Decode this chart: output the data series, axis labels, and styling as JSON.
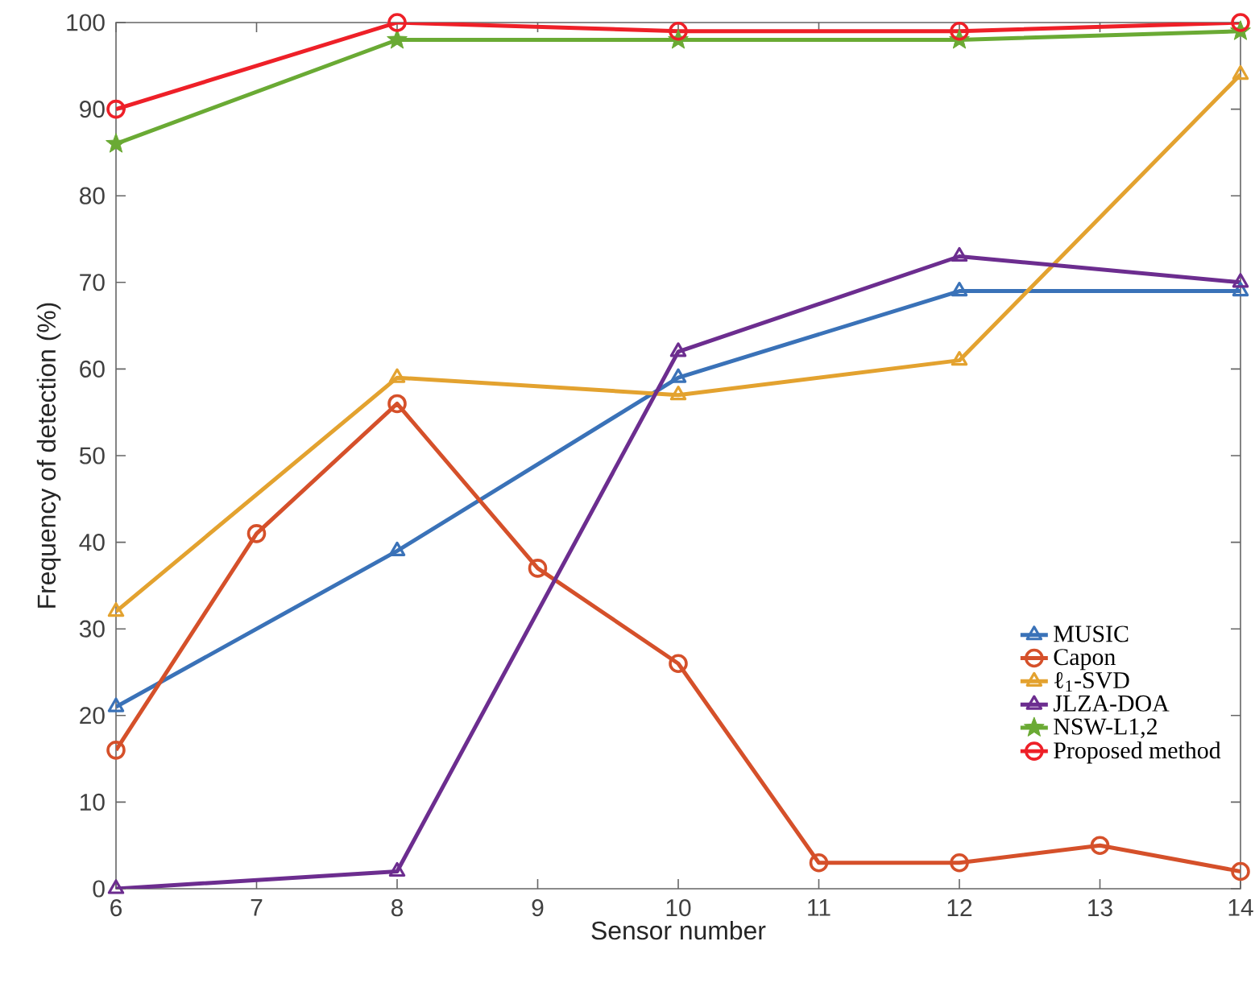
{
  "chart_data": {
    "type": "line",
    "xlabel": "Sensor number",
    "ylabel": "Frequency of detection (%)",
    "xlim": [
      6,
      14
    ],
    "ylim": [
      0,
      100
    ],
    "xticks": [
      6,
      7,
      8,
      9,
      10,
      11,
      12,
      13,
      14
    ],
    "yticks": [
      0,
      10,
      20,
      30,
      40,
      50,
      60,
      70,
      80,
      90,
      100
    ],
    "grid": false,
    "legend": "bottom right",
    "line_style": "solid",
    "series": [
      {
        "name": "MUSIC",
        "color": "#3a72b8",
        "marker": "triangle",
        "x": [
          6,
          8,
          10,
          12,
          14
        ],
        "values": [
          21,
          39,
          59,
          69,
          69
        ]
      },
      {
        "name": "Capon",
        "color": "#d5502a",
        "marker": "circle",
        "x": [
          6,
          7,
          8,
          9,
          10,
          11,
          12,
          13,
          14
        ],
        "values": [
          16,
          41,
          56,
          37,
          26,
          3,
          3,
          5,
          2
        ]
      },
      {
        "name": "ℓ$_{1}$-SVD",
        "color": "#e3a22f",
        "marker": "triangle",
        "x": [
          6,
          8,
          10,
          12,
          14
        ],
        "values": [
          32,
          59,
          57,
          61,
          94
        ]
      },
      {
        "name": "JLZA-DOA",
        "color": "#6c2d8f",
        "marker": "triangle",
        "x": [
          6,
          8,
          10,
          12,
          14
        ],
        "values": [
          0,
          2,
          62,
          73,
          70
        ]
      },
      {
        "name": "NSW-L1,2",
        "color": "#6aaa34",
        "marker": "star",
        "x": [
          6,
          8,
          10,
          12,
          14
        ],
        "values": [
          86,
          98,
          98,
          98,
          99
        ]
      },
      {
        "name": "Proposed method",
        "color": "#ee2028",
        "marker": "circle",
        "x": [
          6,
          8,
          10,
          12,
          14
        ],
        "values": [
          90,
          100,
          99,
          99,
          100
        ]
      }
    ]
  }
}
